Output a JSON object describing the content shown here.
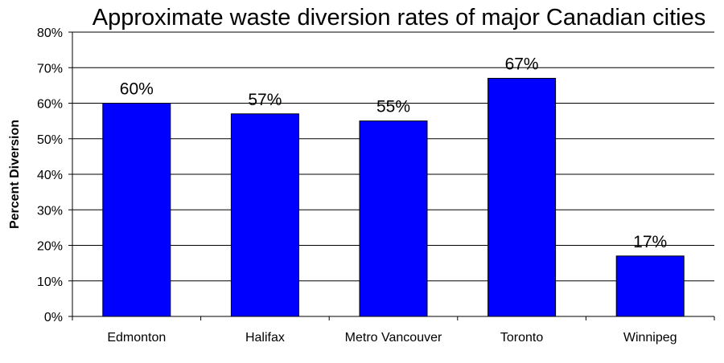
{
  "chart_data": {
    "type": "bar",
    "title": "Approximate waste diversion rates of major Canadian cities",
    "xlabel": "",
    "ylabel": "Percent Diversion",
    "categories": [
      "Edmonton",
      "Halifax",
      "Metro Vancouver",
      "Toronto",
      "Winnipeg"
    ],
    "values": [
      60,
      57,
      55,
      67,
      17
    ],
    "data_labels": [
      "60%",
      "57%",
      "55%",
      "67%",
      "17%"
    ],
    "ylim": [
      0,
      80
    ],
    "yticks": [
      "0%",
      "10%",
      "20%",
      "30%",
      "40%",
      "50%",
      "60%",
      "70%",
      "80%"
    ],
    "grid": true,
    "legend": "none",
    "bar_color": "#0000FF",
    "bar_edge_color": "#000000"
  }
}
